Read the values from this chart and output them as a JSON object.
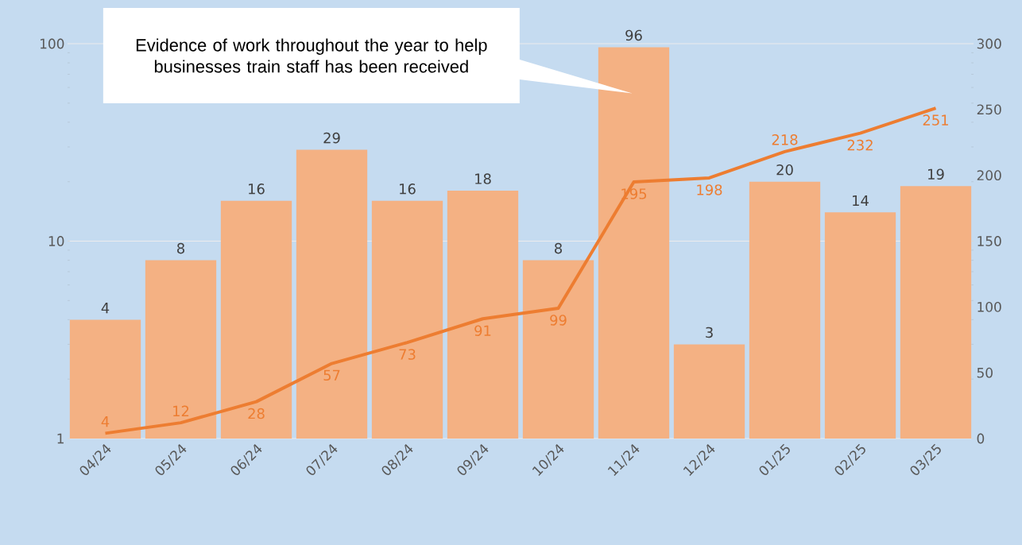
{
  "chart_data": {
    "type": "bar",
    "categories": [
      "04/24",
      "05/24",
      "06/24",
      "07/24",
      "08/24",
      "09/24",
      "10/24",
      "11/24",
      "12/24",
      "01/25",
      "02/25",
      "03/25"
    ],
    "series": [
      {
        "color": "#f4b183",
        "values": [
          4,
          8,
          16,
          29,
          16,
          18,
          8,
          96,
          3,
          20,
          14,
          19
        ]
      },
      {
        "type": "line",
        "axis": "y2",
        "color": "#ed7d31",
        "values": [
          4,
          12,
          28,
          57,
          73,
          91,
          99,
          195,
          198,
          218,
          232,
          251
        ]
      }
    ],
    "log": "y",
    "ylim": [
      1,
      100
    ],
    "yticks": [
      1,
      10,
      100
    ],
    "y2lim": [
      0,
      300
    ],
    "y2ticks": [
      0,
      50,
      100,
      150,
      200,
      250,
      300
    ],
    "grid": "y",
    "data_labels": true,
    "annotations": [
      "Evidence of work throughout the year to help businesses train staff has been received"
    ]
  }
}
